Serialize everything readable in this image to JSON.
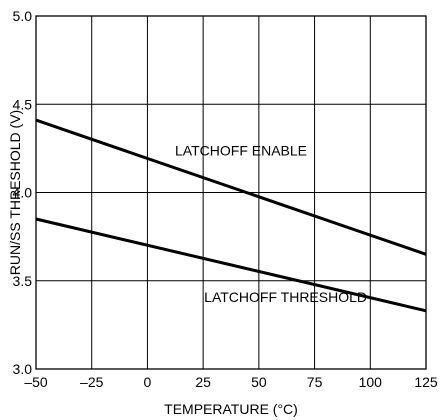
{
  "chart_data": {
    "type": "line",
    "title": "",
    "xlabel": "TEMPERATURE (°C)",
    "ylabel": "RUN/SS THRESHOLD (V)",
    "xlim": [
      -50,
      125
    ],
    "ylim": [
      3.0,
      5.0
    ],
    "x_ticks": [
      -50,
      -25,
      0,
      25,
      50,
      75,
      100,
      125
    ],
    "x_tick_labels": [
      "–50",
      "–25",
      "0",
      "25",
      "50",
      "75",
      "100",
      "125"
    ],
    "y_ticks": [
      3.0,
      3.5,
      4.0,
      4.5,
      5.0
    ],
    "y_tick_labels": [
      "3.0",
      "3.5",
      "4.0",
      "4.5",
      "5.0"
    ],
    "grid": true,
    "series": [
      {
        "name": "LATCHOFF ENABLE",
        "x": [
          -50,
          125
        ],
        "y": [
          4.41,
          3.65
        ]
      },
      {
        "name": "LATCHOFF THRESHOLD",
        "x": [
          -50,
          125
        ],
        "y": [
          3.85,
          3.33
        ]
      }
    ],
    "annotations": [
      {
        "text": "LATCHOFF ENABLE",
        "x": 42,
        "y": 4.21
      },
      {
        "text": "LATCHOFF THRESHOLD",
        "x": 62,
        "y": 3.38
      }
    ],
    "line_color": "#000000",
    "grid_color": "#000000"
  }
}
